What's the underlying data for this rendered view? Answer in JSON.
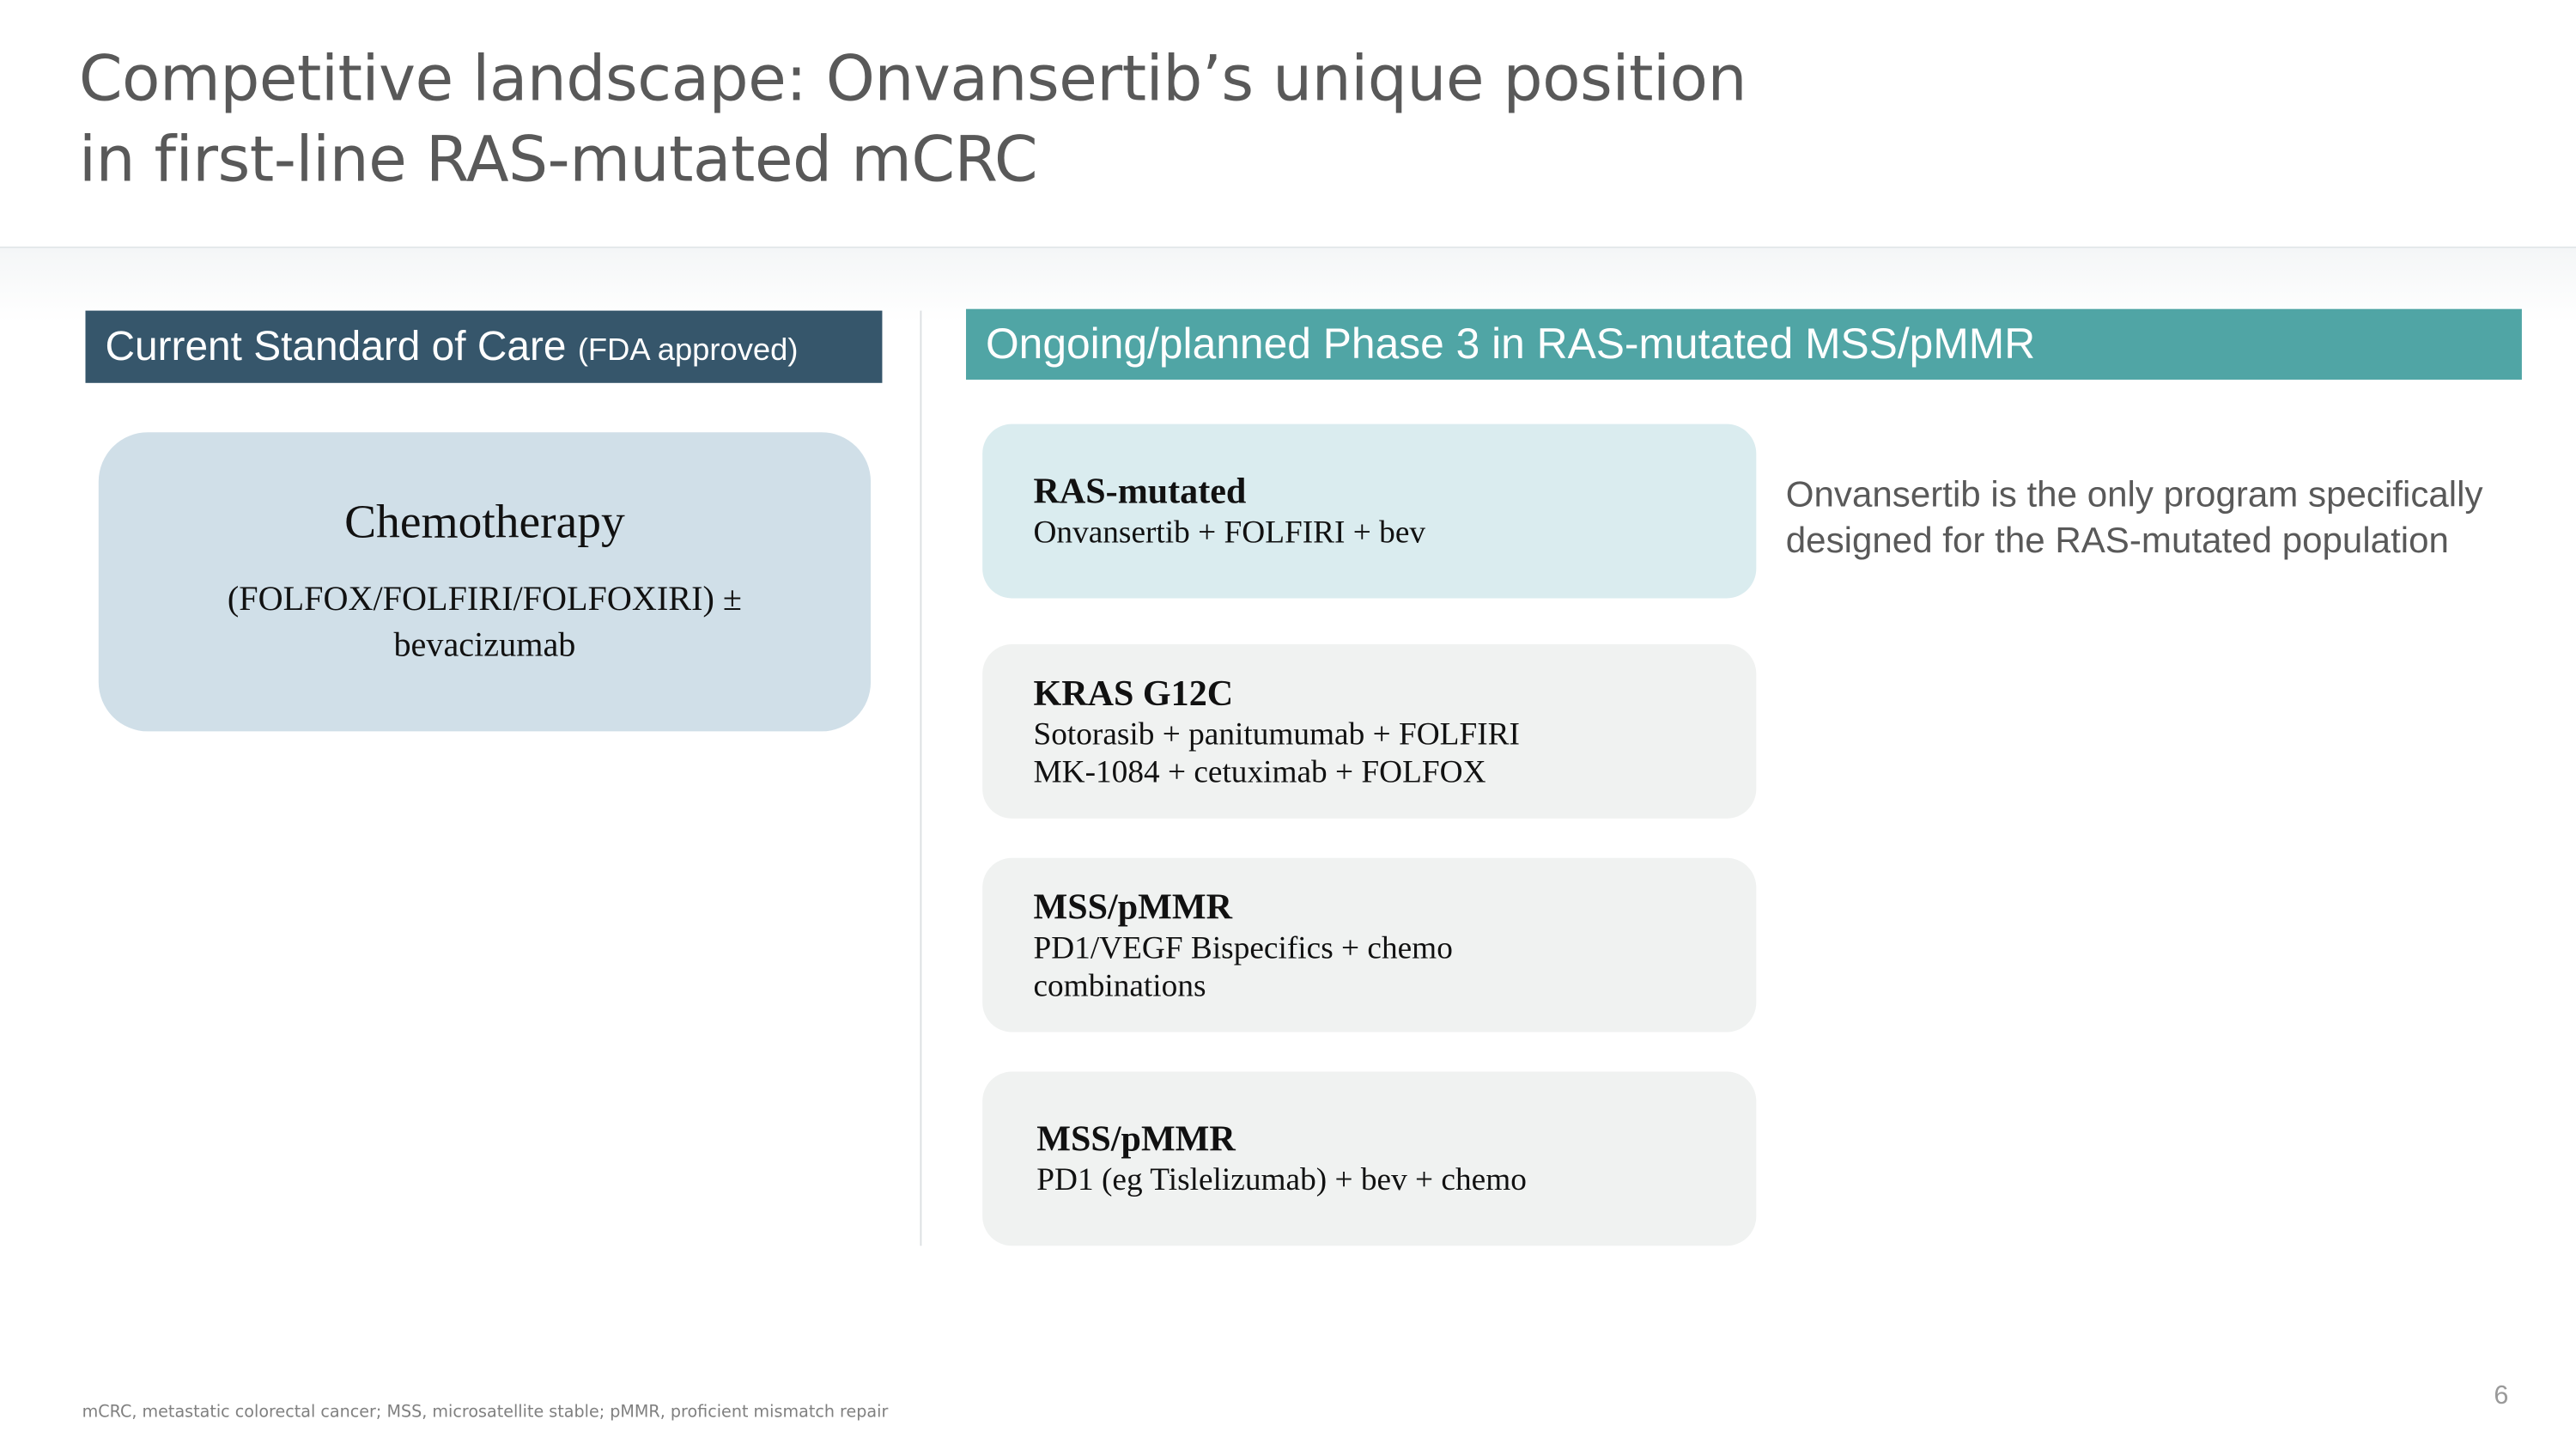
{
  "title": {
    "line1": "Competitive landscape: Onvansertib’s unique position",
    "line2": "in first-line RAS-mutated mCRC"
  },
  "left": {
    "header": "Current Standard of Care",
    "header_note": "(FDA approved)",
    "box_title": "Chemotherapy",
    "box_text": "(FOLFOX/FOLFIRI/FOLFOXIRI) ± bevacizumab"
  },
  "right": {
    "header": "Ongoing/planned Phase 3 in RAS-mutated MSS/pMMR",
    "cards": [
      {
        "title": "RAS-mutated",
        "lines": [
          "Onvansertib + FOLFIRI + bev"
        ],
        "highlight": true
      },
      {
        "title": "KRAS G12C",
        "lines": [
          "Sotorasib + panitumumab + FOLFIRI",
          "MK-1084 + cetuximab + FOLFOX"
        ]
      },
      {
        "title": "MSS/pMMR",
        "lines": [
          "PD1/VEGF Bispecifics + chemo",
          "combinations"
        ]
      },
      {
        "title": "MSS/pMMR",
        "lines": [
          "PD1 (eg Tislelizumab) + bev + chemo"
        ]
      }
    ],
    "note": "Onvansertib is the only program specifically designed for the RAS-mutated population"
  },
  "footnote": "mCRC, metastatic colorectal cancer; MSS, microsatellite stable; pMMR, proficient mismatch repair",
  "page_number": "6",
  "colors": {
    "left_header": "#36566b",
    "right_header": "#50a5a5",
    "chemo_box": "#d0dfe8",
    "highlight_card": "#daecef",
    "card": "#f0f2f1"
  }
}
